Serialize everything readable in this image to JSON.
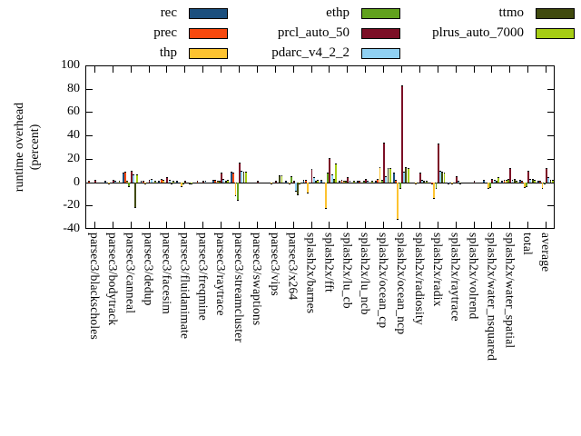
{
  "figure": {
    "y_axis_title_line1": "runtime overhead",
    "y_axis_title_line2": "(percent)"
  },
  "chart_data": {
    "type": "bar",
    "title": "",
    "xlabel": "",
    "ylabel": "runtime overhead (percent)",
    "ylim": [
      -40,
      100
    ],
    "yticks": [
      100,
      80,
      60,
      40,
      20,
      0,
      -20,
      -40
    ],
    "grid": false,
    "legend_position": "top",
    "legend_columns": 3,
    "categories": [
      "parsec3/blackscholes",
      "parsec3/bodytrack",
      "parsec3/canneal",
      "parsec3/dedup",
      "parsec3/facesim",
      "parsec3/fluidanimate",
      "parsec3/freqmine",
      "parsec3/raytrace",
      "parsec3/streamcluster",
      "parsec3/swaptions",
      "parsec3/vips",
      "parsec3/x264",
      "splash2x/barnes",
      "splash2x/fft",
      "splash2x/lu_cb",
      "splash2x/lu_ncb",
      "splash2x/ocean_cp",
      "splash2x/ocean_ncp",
      "splash2x/radiosity",
      "splash2x/radix",
      "splash2x/raytrace",
      "splash2x/volrend",
      "splash2x/water_nsquared",
      "splash2x/water_spatial",
      "total",
      "average"
    ],
    "series": [
      {
        "name": "rec",
        "color": "#1b4f7e",
        "values": [
          0,
          1,
          8,
          1,
          1,
          1,
          0,
          2,
          9,
          0,
          -1,
          1,
          2,
          2,
          1,
          1,
          1,
          8,
          -1,
          -1,
          -2,
          -1,
          2,
          1,
          2,
          1
        ]
      },
      {
        "name": "prec",
        "color": "#f8490e",
        "values": [
          1,
          -1,
          9,
          1,
          3,
          -1,
          1,
          2,
          8,
          -1,
          -1,
          -1,
          2,
          -1,
          2,
          1,
          3,
          2,
          -1,
          -2,
          -1,
          -1,
          -1,
          2,
          1,
          1
        ]
      },
      {
        "name": "thp",
        "color": "#fdc330",
        "values": [
          -1,
          -2,
          1,
          -2,
          2,
          -4,
          -1,
          1,
          -12,
          0,
          -2,
          -2,
          -10,
          -23,
          1,
          -1,
          13,
          -32,
          -2,
          -14,
          -2,
          -1,
          -6,
          2,
          -5,
          -6
        ]
      },
      {
        "name": "ethp",
        "color": "#61a11d",
        "values": [
          -1,
          -1,
          -4,
          -1,
          -1,
          -2,
          -1,
          1,
          -16,
          -1,
          -1,
          5,
          -1,
          8,
          1,
          1,
          2,
          -6,
          -1,
          -6,
          -1,
          -1,
          -5,
          3,
          -4,
          -2
        ]
      },
      {
        "name": "prcl_auto_50",
        "color": "#7c0f26",
        "values": [
          2,
          2,
          10,
          2,
          4,
          1,
          1,
          8,
          17,
          1,
          1,
          1,
          11,
          21,
          4,
          3,
          34,
          83,
          8,
          33,
          5,
          1,
          3,
          12,
          10,
          12
        ]
      },
      {
        "name": "pdarc_v4_2_2",
        "color": "#90d1f3",
        "values": [
          0,
          1,
          7,
          3,
          2,
          -1,
          1,
          3,
          10,
          0,
          -1,
          -8,
          4,
          7,
          1,
          1,
          5,
          9,
          2,
          10,
          1,
          -1,
          2,
          2,
          3,
          4
        ]
      },
      {
        "name": "ttmo",
        "color": "#404a0e",
        "values": [
          -1,
          -1,
          -22,
          -1,
          -2,
          -2,
          -1,
          1,
          9,
          -1,
          6,
          -11,
          1,
          3,
          -1,
          -1,
          12,
          13,
          1,
          9,
          -2,
          -1,
          1,
          3,
          3,
          2
        ]
      },
      {
        "name": "plrus_auto_7000",
        "color": "#a6cd14",
        "values": [
          0,
          1,
          7,
          1,
          1,
          -2,
          0,
          2,
          9,
          0,
          6,
          -2,
          2,
          16,
          1,
          1,
          12,
          12,
          1,
          8,
          -1,
          -1,
          4,
          1,
          2,
          2
        ]
      }
    ]
  }
}
